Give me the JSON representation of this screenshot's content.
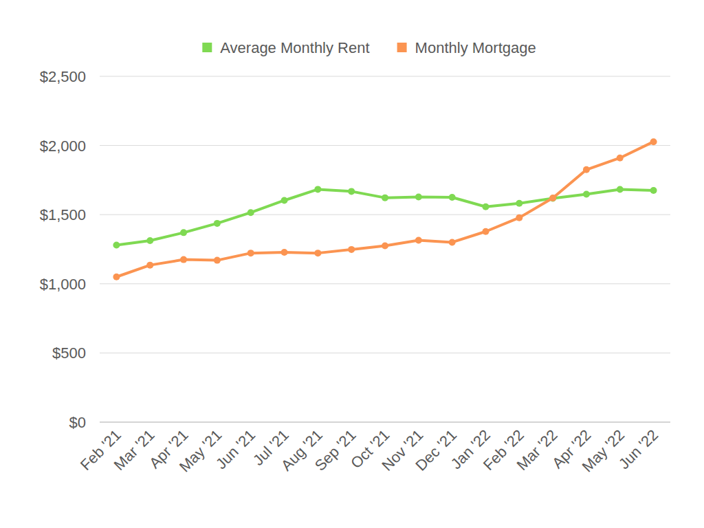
{
  "chart_data": {
    "type": "line",
    "categories": [
      "Feb '21",
      "Mar '21",
      "Apr '21",
      "May '21",
      "Jun '21",
      "Jul '21",
      "Aug '21",
      "Sep '21",
      "Oct '21",
      "Nov '21",
      "Dec '21",
      "Jan '22",
      "Feb '22",
      "Mar '22",
      "Apr '22",
      "May '22",
      "Jun '22"
    ],
    "series": [
      {
        "name": "Average Monthly Rent",
        "color": "#7fd952",
        "values": [
          1280,
          1312,
          1370,
          1437,
          1515,
          1603,
          1683,
          1668,
          1622,
          1628,
          1625,
          1557,
          1582,
          1618,
          1648,
          1682,
          1675
        ]
      },
      {
        "name": "Monthly Mortgage",
        "color": "#fb9451",
        "values": [
          1050,
          1135,
          1175,
          1170,
          1222,
          1228,
          1222,
          1248,
          1275,
          1315,
          1300,
          1378,
          1478,
          1620,
          1825,
          1910,
          2027
        ]
      }
    ],
    "ylim": [
      0,
      2500
    ],
    "yticks": [
      {
        "value": 0,
        "label": "$0"
      },
      {
        "value": 500,
        "label": "$500"
      },
      {
        "value": 1000,
        "label": "$1,000"
      },
      {
        "value": 1500,
        "label": "$1,500"
      },
      {
        "value": 2000,
        "label": "$2,000"
      },
      {
        "value": 2500,
        "label": "$2,500"
      }
    ],
    "grid": true,
    "legend": "top",
    "marker": "circle"
  }
}
